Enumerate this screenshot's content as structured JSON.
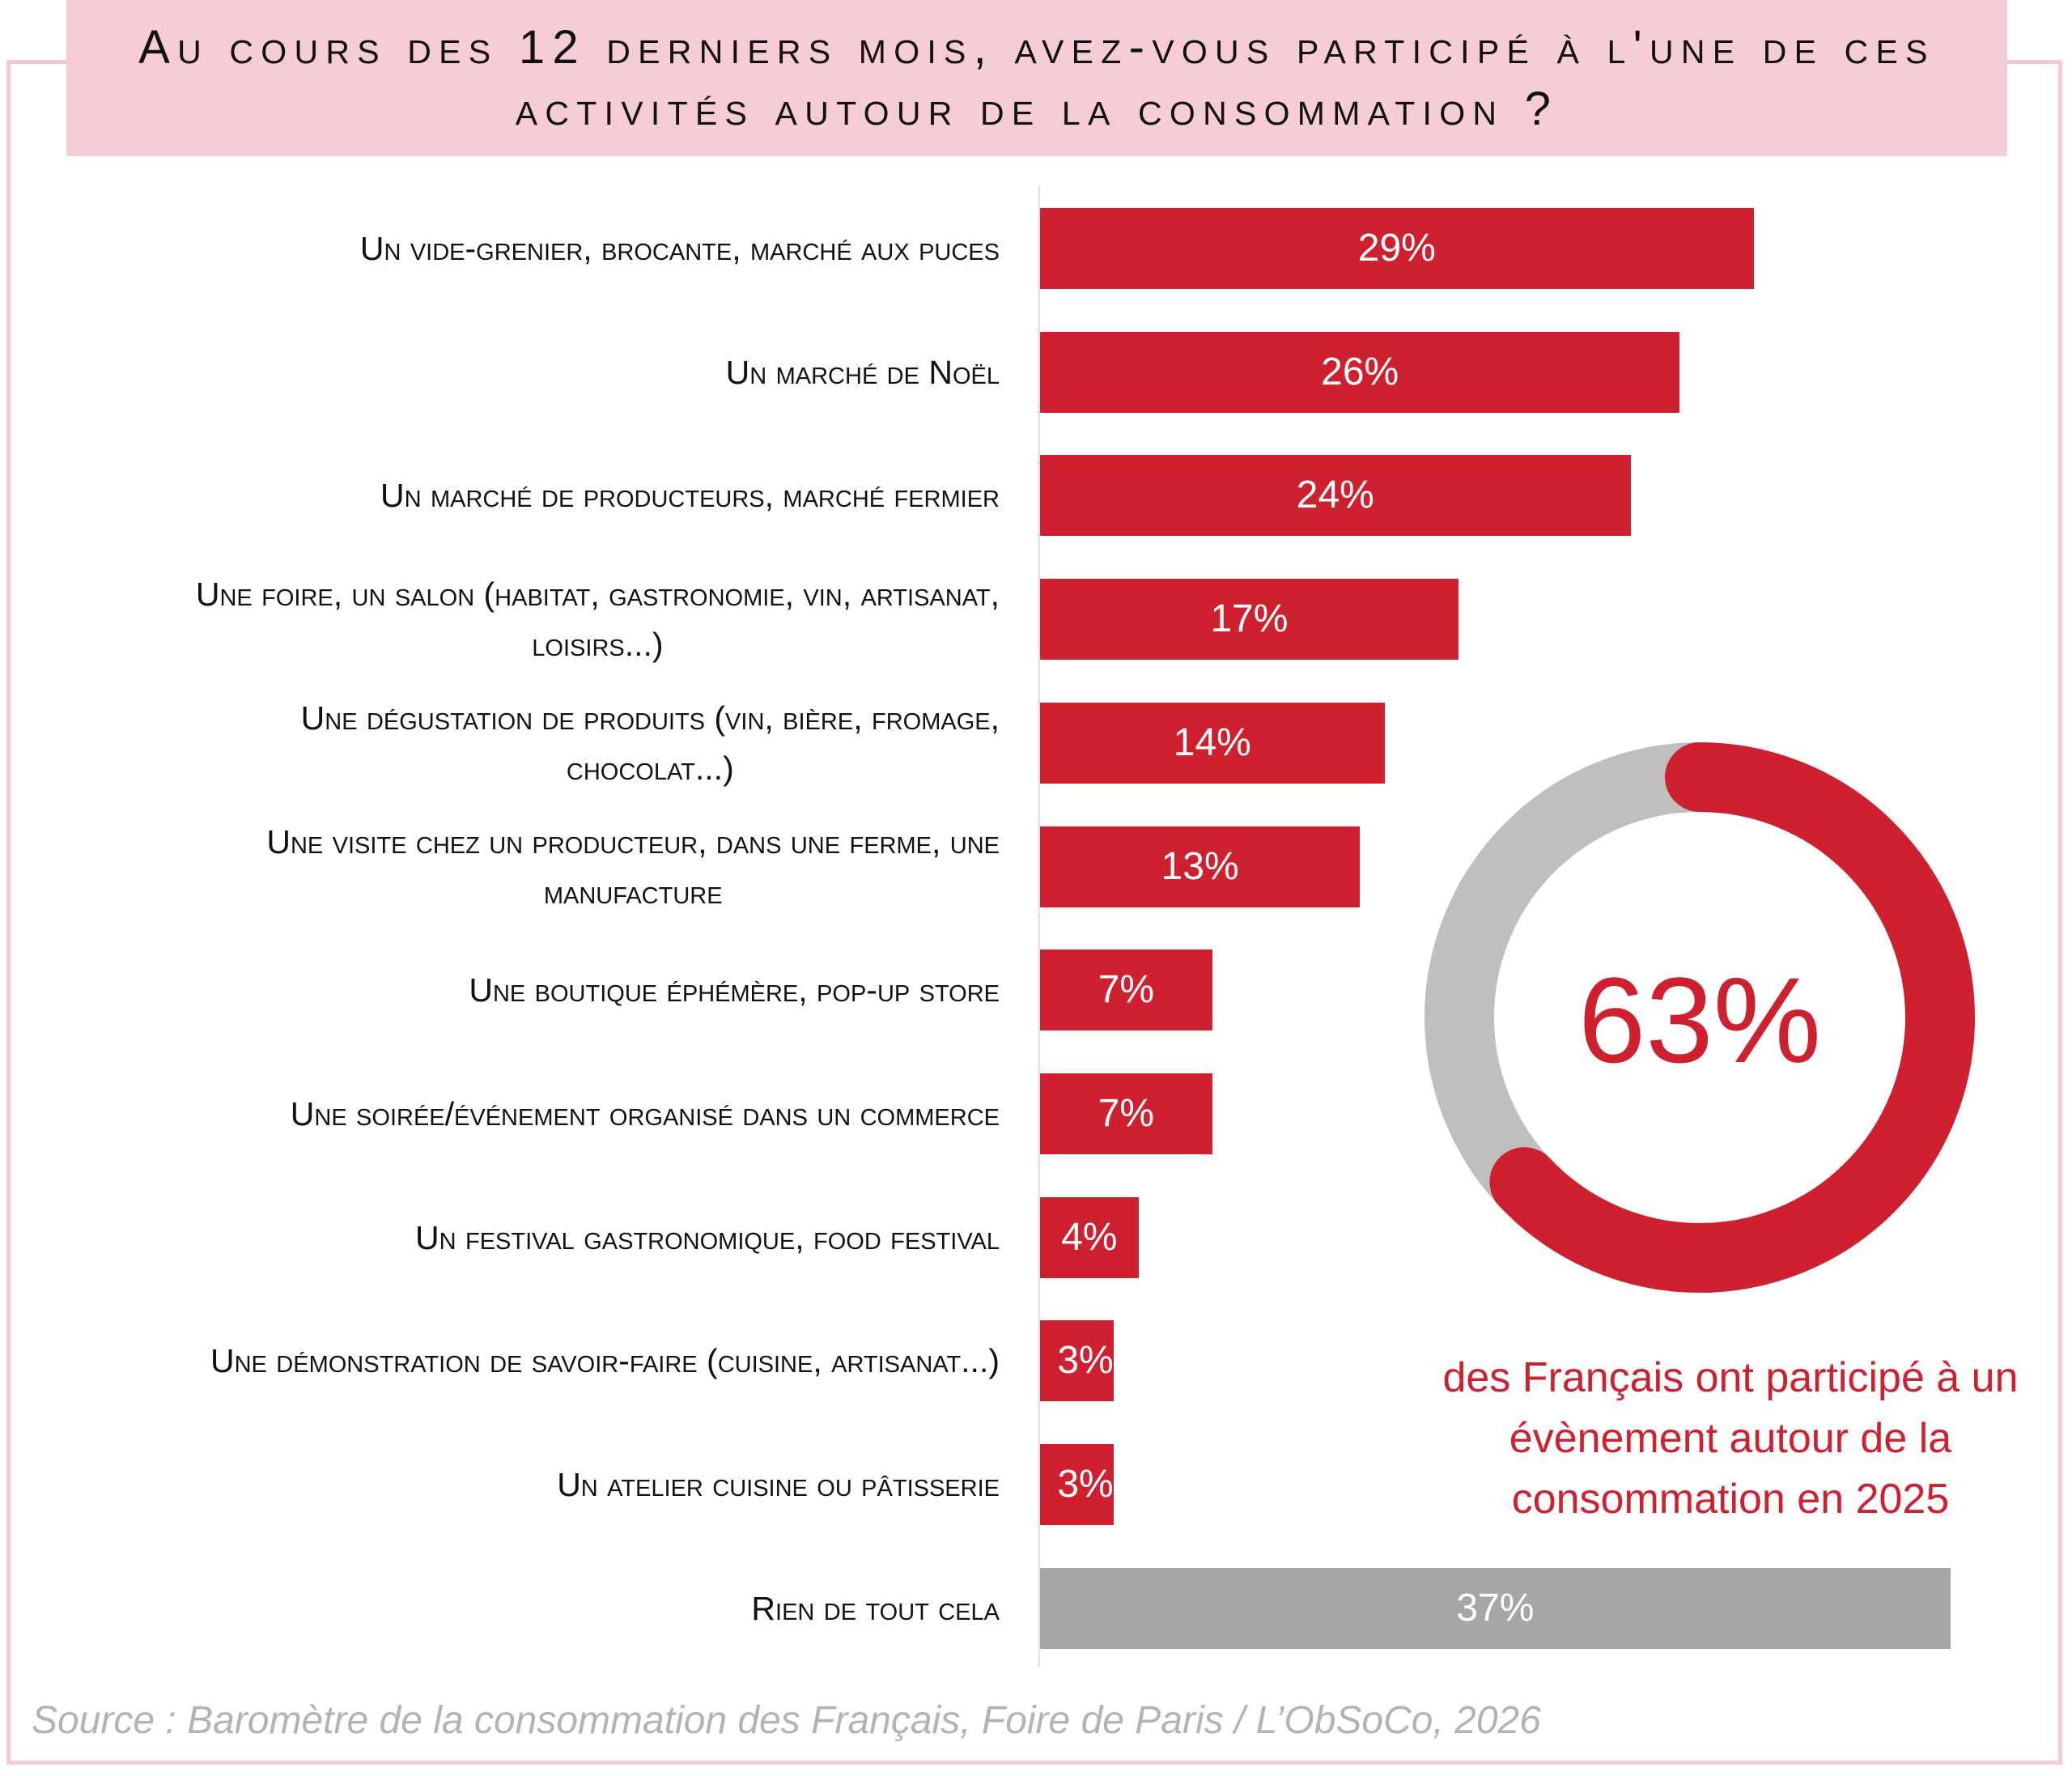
{
  "title": {
    "line1": "Au cours des 12 derniers mois, avez-vous participé à l'une de ces",
    "line2": "activités autour de la consommation ?"
  },
  "chart_data": {
    "type": "bar",
    "orientation": "horizontal",
    "title": "Au cours des 12 derniers mois, avez-vous participé à l'une de ces activités autour de la consommation ?",
    "categories": [
      [
        "Un vide-grenier, brocante, marché aux puces"
      ],
      [
        "Un marché de Noël"
      ],
      [
        "Un marché de producteurs, marché fermier"
      ],
      [
        "Une foire, un salon (habitat, gastronomie, vin, artisanat,",
        "loisirs...)"
      ],
      [
        "Une dégustation de produits (vin, bière, fromage,",
        "chocolat...)"
      ],
      [
        "Une visite chez un producteur, dans une ferme, une",
        "manufacture"
      ],
      [
        "Une boutique éphémère, pop-up store"
      ],
      [
        "Une soirée/événement organisé dans un commerce"
      ],
      [
        "Un festival gastronomique, food festival"
      ],
      [
        "Une démonstration de savoir-faire (cuisine, artisanat...)"
      ],
      [
        "Un atelier cuisine ou pâtisserie"
      ],
      [
        "Rien de tout cela"
      ]
    ],
    "values": [
      29,
      26,
      24,
      17,
      14,
      13,
      7,
      7,
      4,
      3,
      3,
      37
    ],
    "value_labels": [
      "29%",
      "26%",
      "24%",
      "17%",
      "14%",
      "13%",
      "7%",
      "7%",
      "4%",
      "3%",
      "3%",
      "37%"
    ],
    "unit": "%",
    "xlim": [
      0,
      37
    ],
    "colors": {
      "bar": "#cf2030",
      "none_bar": "#a6a6a6"
    },
    "donut": {
      "value": 63,
      "label": "63%",
      "color": "#cf2030",
      "track_color": "#bfbfbf"
    }
  },
  "caption": [
    "des Français ont participé à un",
    "évènement autour de la",
    "consommation en 2025"
  ],
  "source": "Source : Baromètre de la consommation des Français, Foire de Paris / L’ObSoCo, 2026"
}
